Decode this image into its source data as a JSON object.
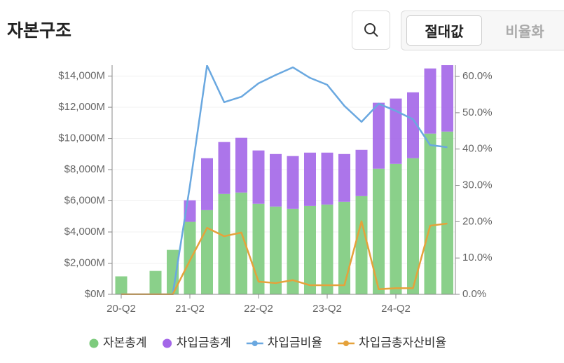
{
  "header": {
    "title": "자본구조",
    "toggle": [
      "절대값",
      "비율화"
    ]
  },
  "chart_data": {
    "type": "bar",
    "stacked": true,
    "categories": [
      "20-Q2",
      null,
      null,
      null,
      "21-Q2",
      null,
      null,
      null,
      "22-Q2",
      null,
      null,
      null,
      "23-Q2",
      null,
      null,
      null,
      "24-Q2",
      null,
      null,
      null
    ],
    "series": [
      {
        "name": "자본총계",
        "type": "bar",
        "color": "#7dcb7d",
        "values": [
          1150,
          0,
          1500,
          2850,
          4650,
          5400,
          6440,
          6530,
          5810,
          5630,
          5490,
          5670,
          5760,
          5940,
          6300,
          8060,
          8370,
          8730,
          10310,
          10440
        ]
      },
      {
        "name": "차입금총계",
        "type": "bar",
        "color": "#a366e8",
        "values": [
          0,
          0,
          0,
          0,
          1380,
          3330,
          3330,
          3510,
          3420,
          3370,
          3380,
          3420,
          3330,
          3060,
          2970,
          4230,
          4190,
          4230,
          4180,
          4280
        ]
      },
      {
        "name": "차입금비율",
        "type": "line",
        "axis": "y2",
        "color": "#6aa8e0",
        "values": [
          0,
          0,
          0,
          0,
          29.8,
          63,
          52.9,
          54.4,
          58.1,
          60.4,
          62.5,
          59.6,
          57.7,
          51.9,
          47.5,
          52.5,
          50.5,
          48.2,
          41.1,
          40.5
        ]
      },
      {
        "name": "차입금총자산비율",
        "type": "line",
        "axis": "y2",
        "color": "#e5a23b",
        "values": [
          0,
          0,
          0,
          0,
          9.3,
          18.3,
          16.0,
          17.0,
          3.5,
          3.1,
          3.9,
          2.5,
          2.5,
          2.5,
          20.1,
          1.4,
          1.7,
          1.7,
          18.9,
          19.5
        ]
      }
    ],
    "ylim": [
      0,
      14700
    ],
    "yticks": [
      {
        "value": 0,
        "label": "$0M"
      },
      {
        "value": 2000,
        "label": "$2,000M"
      },
      {
        "value": 4000,
        "label": "$4,000M"
      },
      {
        "value": 6000,
        "label": "$6,000M"
      },
      {
        "value": 8000,
        "label": "$8,000M"
      },
      {
        "value": 10000,
        "label": "$10,000M"
      },
      {
        "value": 12000,
        "label": "$12,000M"
      },
      {
        "value": 14000,
        "label": "$14,000M"
      }
    ],
    "y2lim": [
      0,
      63.1
    ],
    "y2ticks": [
      {
        "value": 0,
        "label": "0.0%"
      },
      {
        "value": 10,
        "label": "10.0%"
      },
      {
        "value": 20,
        "label": "20.0%"
      },
      {
        "value": 30,
        "label": "30.0%"
      },
      {
        "value": 40,
        "label": "40.0%"
      },
      {
        "value": 50,
        "label": "50.0%"
      },
      {
        "value": 60,
        "label": "60.0%"
      }
    ],
    "grid": true,
    "legend": "bottom"
  }
}
